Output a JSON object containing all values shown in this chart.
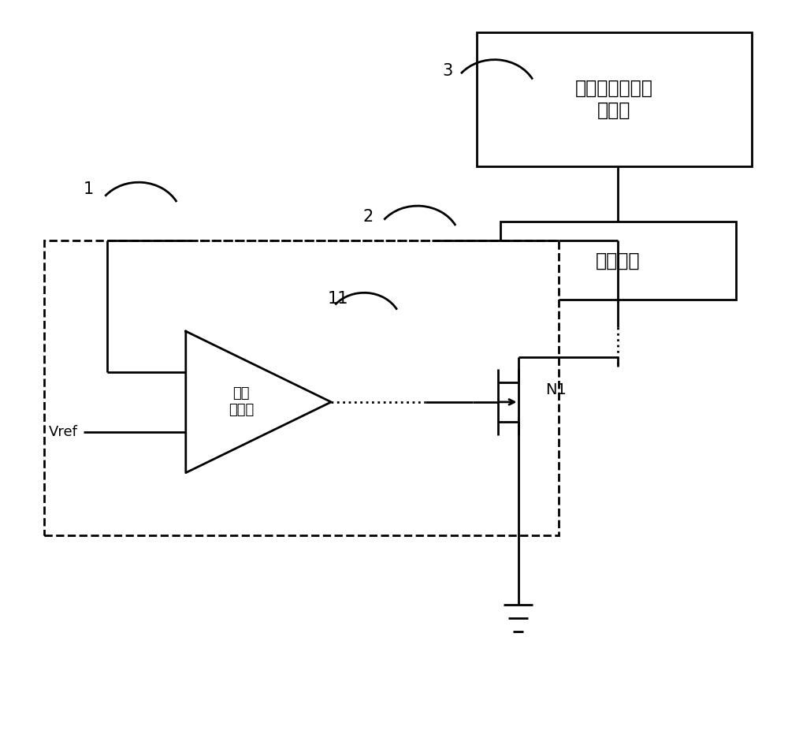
{
  "bg_color": "#ffffff",
  "line_color": "#000000",
  "box1_label": "平均功率追踪控\n制模块",
  "box2_label": "供电模块",
  "opamp_label": "运算\n放大器",
  "label1": "1",
  "label2": "2",
  "label3": "3",
  "label11": "11",
  "labelN1": "N1",
  "labelVref": "Vref",
  "font_size_box": 17,
  "font_size_label": 15
}
